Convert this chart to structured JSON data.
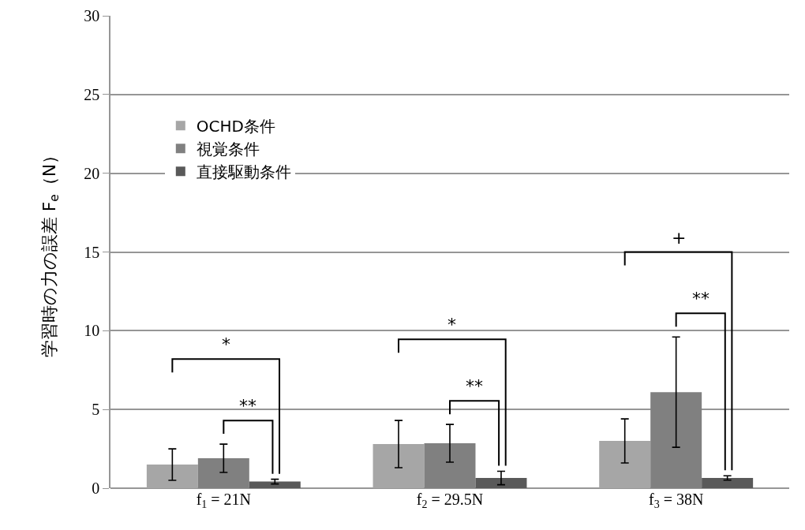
{
  "chart_data": {
    "type": "bar",
    "ylabel": "学習時の力の誤差 F$_{e}$（N）",
    "categories": [
      "f$_{1}$ = 21N",
      "f$_{2}$ = 29.5N",
      "f$_{3}$ = 38N"
    ],
    "series": [
      {
        "name": "OCHD条件",
        "color": "#a6a6a6",
        "values": [
          1.5,
          2.8,
          3.0
        ],
        "errors": [
          1.0,
          1.5,
          1.4
        ]
      },
      {
        "name": "視覚条件",
        "color": "#808080",
        "values": [
          1.9,
          2.85,
          6.1
        ],
        "errors": [
          0.9,
          1.2,
          3.5
        ]
      },
      {
        "name": "直接駆動条件",
        "color": "#595959",
        "values": [
          0.42,
          0.65,
          0.65
        ],
        "errors": [
          0.15,
          0.43,
          0.14
        ]
      }
    ],
    "ylim": [
      0,
      30
    ],
    "yticks": [
      0,
      5,
      10,
      15,
      20,
      25,
      30
    ],
    "grid": "y",
    "legend": "top left",
    "annotations": [
      "*",
      "**",
      "*",
      "**",
      "+",
      "**"
    ]
  }
}
